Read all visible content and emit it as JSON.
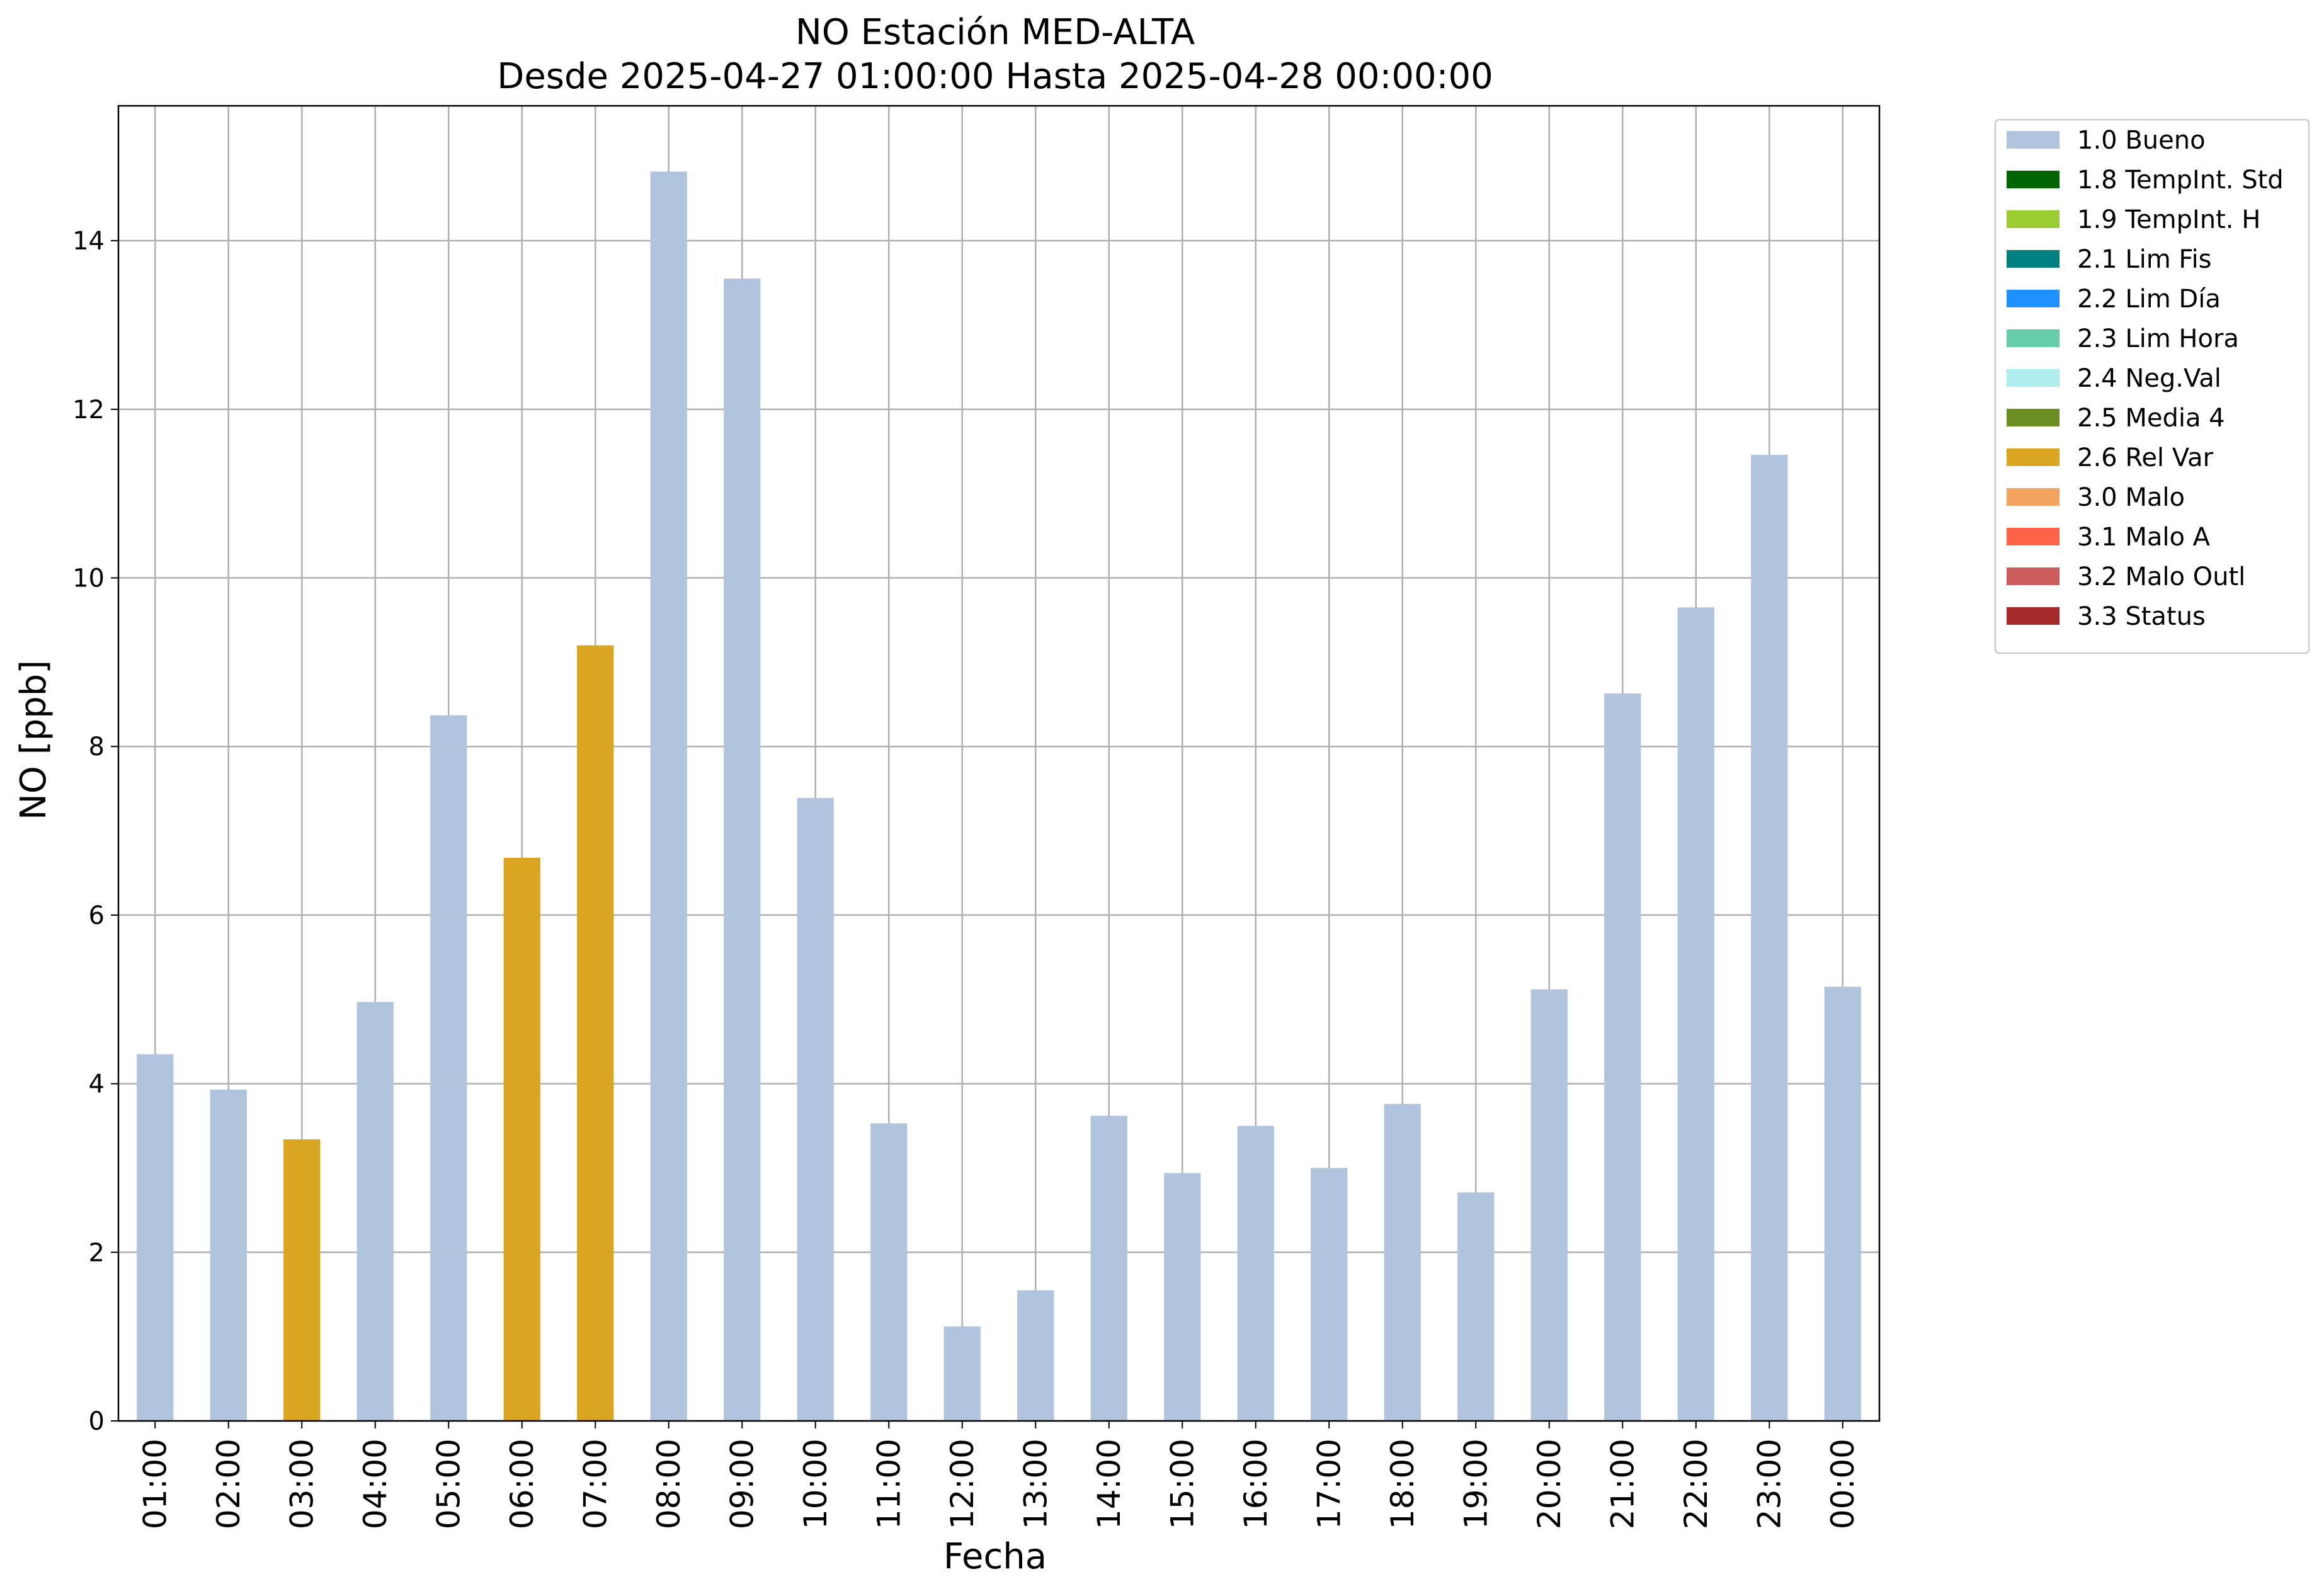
{
  "chart_data": {
    "type": "bar",
    "title": "NO Estación MED-ALTA",
    "subtitle": "Desde 2025-04-27 01:00:00 Hasta 2025-04-28 00:00:00",
    "xlabel": "Fecha",
    "ylabel": "NO [ppb]",
    "ylim": [
      0,
      15.6
    ],
    "yticks": [
      0,
      2,
      4,
      6,
      8,
      10,
      12,
      14
    ],
    "grid": true,
    "legend_position": "outside-top-right",
    "categories": [
      "01:00",
      "02:00",
      "03:00",
      "04:00",
      "05:00",
      "06:00",
      "07:00",
      "08:00",
      "09:00",
      "10:00",
      "11:00",
      "12:00",
      "13:00",
      "14:00",
      "15:00",
      "16:00",
      "17:00",
      "18:00",
      "19:00",
      "20:00",
      "21:00",
      "22:00",
      "23:00",
      "00:00"
    ],
    "values": [
      4.35,
      3.93,
      3.34,
      4.97,
      8.37,
      6.68,
      9.2,
      14.82,
      13.55,
      7.39,
      3.53,
      1.12,
      1.55,
      3.62,
      2.94,
      3.5,
      3.0,
      3.76,
      2.71,
      5.12,
      8.63,
      9.65,
      11.46,
      5.15
    ],
    "flags": [
      "1.0 Bueno",
      "1.0 Bueno",
      "2.6 Rel Var",
      "1.0 Bueno",
      "1.0 Bueno",
      "2.6 Rel Var",
      "2.6 Rel Var",
      "1.0 Bueno",
      "1.0 Bueno",
      "1.0 Bueno",
      "1.0 Bueno",
      "1.0 Bueno",
      "1.0 Bueno",
      "1.0 Bueno",
      "1.0 Bueno",
      "1.0 Bueno",
      "1.0 Bueno",
      "1.0 Bueno",
      "1.0 Bueno",
      "1.0 Bueno",
      "1.0 Bueno",
      "1.0 Bueno",
      "1.0 Bueno",
      "1.0 Bueno"
    ],
    "legend": [
      {
        "label": "1.0 Bueno",
        "color": "#b0c4de"
      },
      {
        "label": "1.8 TempInt. Std",
        "color": "#006400"
      },
      {
        "label": "1.9 TempInt. H",
        "color": "#9acd32"
      },
      {
        "label": "2.1 Lim Fis",
        "color": "#008080"
      },
      {
        "label": "2.2 Lim Día",
        "color": "#1e90ff"
      },
      {
        "label": "2.3 Lim Hora",
        "color": "#66cdaa"
      },
      {
        "label": "2.4 Neg.Val",
        "color": "#afeeee"
      },
      {
        "label": "2.5 Media 4",
        "color": "#6b8e23"
      },
      {
        "label": "2.6 Rel Var",
        "color": "#daa520"
      },
      {
        "label": "3.0 Malo",
        "color": "#f4a460"
      },
      {
        "label": "3.1 Malo A",
        "color": "#ff6347"
      },
      {
        "label": "3.2 Malo Outl",
        "color": "#cd5c5c"
      },
      {
        "label": "3.3 Status",
        "color": "#a52a2a"
      }
    ]
  }
}
